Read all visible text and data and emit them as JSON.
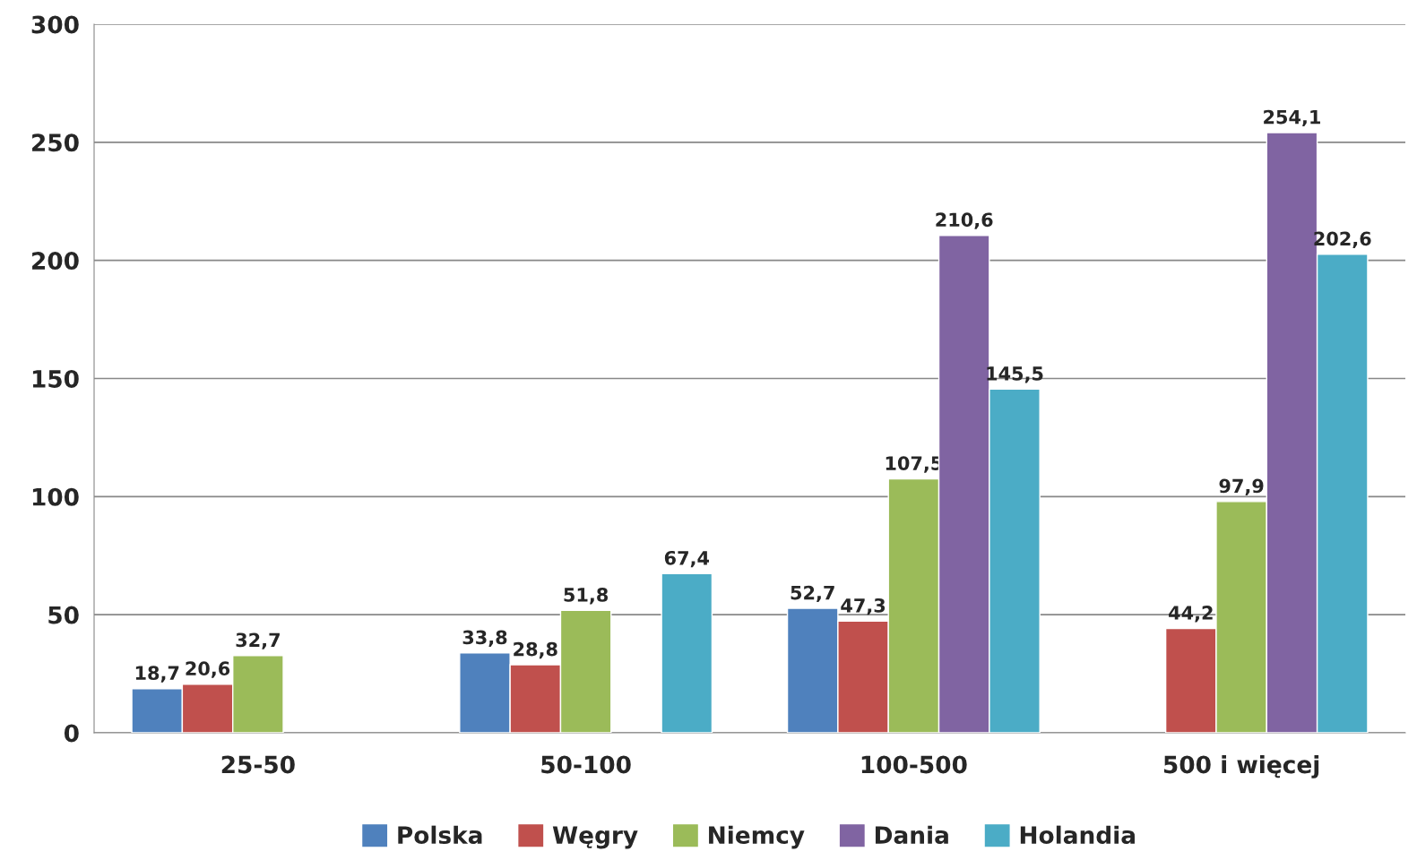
{
  "chart_data": {
    "type": "bar",
    "categories": [
      "25-50",
      "50-100",
      "100-500",
      "500 i więcej"
    ],
    "series": [
      {
        "name": "Polska",
        "color": "#4f81bd",
        "values": [
          18.7,
          33.8,
          52.7,
          null
        ],
        "value_labels": [
          "18,7",
          "33,8",
          "52,7",
          null
        ]
      },
      {
        "name": "Węgry",
        "color": "#c0504d",
        "values": [
          20.6,
          28.8,
          47.3,
          44.2
        ],
        "value_labels": [
          "20,6",
          "28,8",
          "47,3",
          "44,2"
        ]
      },
      {
        "name": "Niemcy",
        "color": "#9bbb59",
        "values": [
          32.7,
          51.8,
          107.5,
          97.9
        ],
        "value_labels": [
          "32,7",
          "51,8",
          "107,5",
          "97,9"
        ]
      },
      {
        "name": "Dania",
        "color": "#8064a2",
        "values": [
          null,
          null,
          210.6,
          254.1
        ],
        "value_labels": [
          null,
          null,
          "210,6",
          "254,1"
        ]
      },
      {
        "name": "Holandia",
        "color": "#4bacc6",
        "values": [
          null,
          67.4,
          145.5,
          202.6
        ],
        "value_labels": [
          null,
          "67,4",
          "145,5",
          "202,6"
        ]
      }
    ],
    "ylim": [
      0,
      300
    ],
    "yticks": [
      0,
      50,
      100,
      150,
      200,
      250,
      300
    ],
    "grid": "y",
    "legend": "bottom"
  }
}
